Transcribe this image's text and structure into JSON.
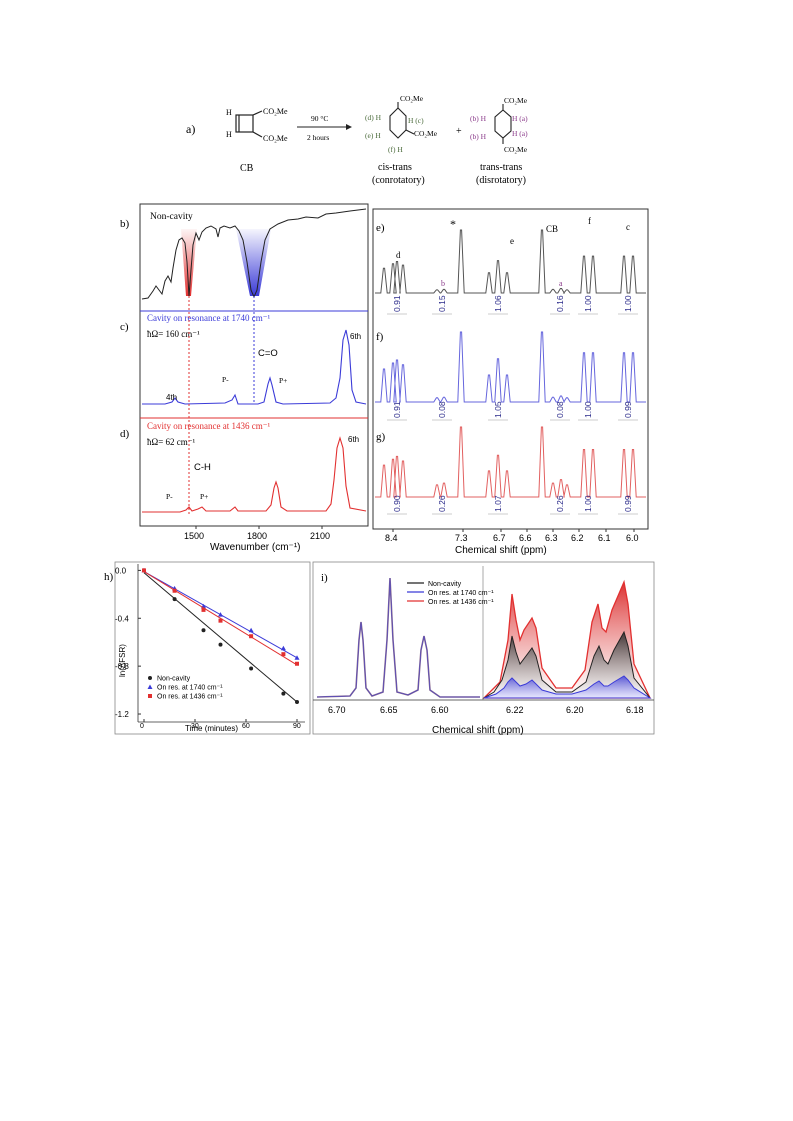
{
  "colors": {
    "noncavity": "#222222",
    "res1740": "#3b3bd8",
    "res1436": "#e23030",
    "integral": "#2a2a8a",
    "purple": "#8a3a8a",
    "green": "#4a6a3a"
  },
  "panel_a": {
    "label": "a)",
    "reactant_label": "CB",
    "cond1": "90 °C",
    "cond2": "2 hours",
    "plus": "+",
    "product1_name": "cis-trans",
    "product1_mode": "(conrotatory)",
    "product2_name": "trans-trans",
    "product2_mode": "(disrotatory)",
    "co2me": "CO₂Me"
  },
  "panel_b": {
    "label": "b)",
    "title": "Non-cavity"
  },
  "panel_c": {
    "label": "c)",
    "title": "Cavity on resonance at 1740 cm⁻¹",
    "rabi": "ħΩ= 160 cm⁻¹",
    "mode_co": "C=O",
    "p_minus": "P-",
    "p_plus": "P+",
    "fourth": "4th",
    "sixth": "6th"
  },
  "panel_d": {
    "label": "d)",
    "title": "Cavity on resonance at 1436 cm⁻¹",
    "rabi": "ħΩ= 62 cm⁻¹",
    "mode_ch": "C-H",
    "p_minus": "P-",
    "p_plus": "P+",
    "sixth": "6th"
  },
  "ir_axis": {
    "xlabel": "Wavenumber (cm⁻¹)",
    "ticks": [
      "1500",
      "1800",
      "2100"
    ]
  },
  "nmr_panels": {
    "e": {
      "label": "e)",
      "integrals": [
        "0.91",
        "0.15",
        "1.06",
        "0.16",
        "1.00",
        "1.00"
      ]
    },
    "f": {
      "label": "f)",
      "integrals": [
        "0.91",
        "0.08",
        "1.05",
        "0.08",
        "1.00",
        "0.99"
      ]
    },
    "g": {
      "label": "g)",
      "integrals": [
        "0.90",
        "0.26",
        "1.07",
        "0.26",
        "1.00",
        "0.99"
      ]
    },
    "peak_labels": [
      "d",
      "*",
      "b",
      "e",
      "CB",
      "a",
      "f",
      "c"
    ],
    "xlabel": "Chemical shift (ppm)",
    "ticks": [
      "8.4",
      "7.3",
      "6.7",
      "6.6",
      "6.3",
      "6.2",
      "6.1",
      "6.0"
    ]
  },
  "panel_h": {
    "label": "h)",
    "ylabel": "ln(ΔFSR)",
    "xlabel": "Time (minutes)"
  },
  "panel_i": {
    "label": "i)",
    "xlabel": "Chemical shift (ppm)",
    "xticks_left": [
      "6.70",
      "6.65",
      "6.60"
    ],
    "xticks_right": [
      "6.22",
      "6.20",
      "6.18"
    ]
  },
  "chart_data": [
    {
      "type": "line",
      "panel": "h",
      "xlabel": "Time (minutes)",
      "ylabel": "ln(ΔFSR)",
      "xlim": [
        -5,
        95
      ],
      "ylim": [
        -1.3,
        0.05
      ],
      "xticks": [
        0,
        30,
        60,
        90
      ],
      "yticks": [
        0.0,
        -0.4,
        -0.8,
        -1.2
      ],
      "legend": "bottom-left",
      "series": [
        {
          "name": "Non-cavity",
          "marker": "circle",
          "color": "#222222",
          "x": [
            0,
            18,
            35,
            45,
            63,
            82,
            90
          ],
          "y": [
            0,
            -0.24,
            -0.5,
            -0.62,
            -0.82,
            -1.03,
            -1.1
          ],
          "fit": [
            [
              0,
              -0.02
            ],
            [
              90,
              -1.1
            ]
          ]
        },
        {
          "name": "On res. at 1740 cm⁻¹",
          "marker": "triangle",
          "color": "#3b3bd8",
          "x": [
            0,
            18,
            35,
            45,
            63,
            82,
            90
          ],
          "y": [
            0,
            -0.15,
            -0.3,
            -0.37,
            -0.5,
            -0.65,
            -0.73
          ],
          "fit": [
            [
              0,
              -0.01
            ],
            [
              90,
              -0.73
            ]
          ]
        },
        {
          "name": "On res. at 1436 cm⁻¹",
          "marker": "square",
          "color": "#e23030",
          "x": [
            0,
            18,
            35,
            45,
            63,
            82,
            90
          ],
          "y": [
            0,
            -0.17,
            -0.33,
            -0.42,
            -0.55,
            -0.7,
            -0.78
          ],
          "fit": [
            [
              0,
              -0.01
            ],
            [
              90,
              -0.79
            ]
          ]
        }
      ]
    }
  ]
}
